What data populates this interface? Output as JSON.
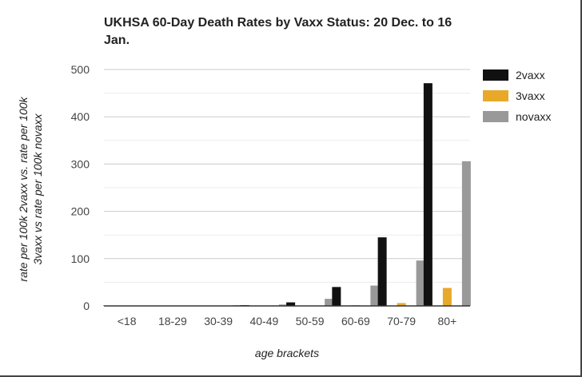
{
  "chart_data": {
    "type": "bar",
    "title": "UKHSA 60-Day Death Rates by Vaxx Status: 20 Dec. to 16 Jan.",
    "xlabel": "age brackets",
    "ylabel_lines": [
      "rate per 100k 2vaxx vs. rate per 100k",
      "3vaxx vs rate per 100k novaxx"
    ],
    "categories": [
      "<18",
      "18-29",
      "30-39",
      "40-49",
      "50-59",
      "60-69",
      "70-79",
      "80+"
    ],
    "ylim": [
      0,
      500
    ],
    "yticks": [
      0,
      100,
      200,
      300,
      400,
      500
    ],
    "grid": true,
    "legend_position": "right",
    "series": [
      {
        "name": "2vaxx",
        "color": "#111111",
        "values": [
          0.1,
          0.2,
          0.5,
          1.6,
          7.5,
          40,
          145,
          471
        ]
      },
      {
        "name": "3vaxx",
        "color": "#e8a92a",
        "values": [
          0.05,
          0.05,
          0.1,
          0.3,
          0.8,
          1.5,
          6,
          38
        ]
      },
      {
        "name": "novaxx",
        "color": "#999999",
        "values": [
          0.3,
          0.4,
          1.5,
          3,
          15,
          43,
          96,
          306
        ]
      }
    ]
  }
}
